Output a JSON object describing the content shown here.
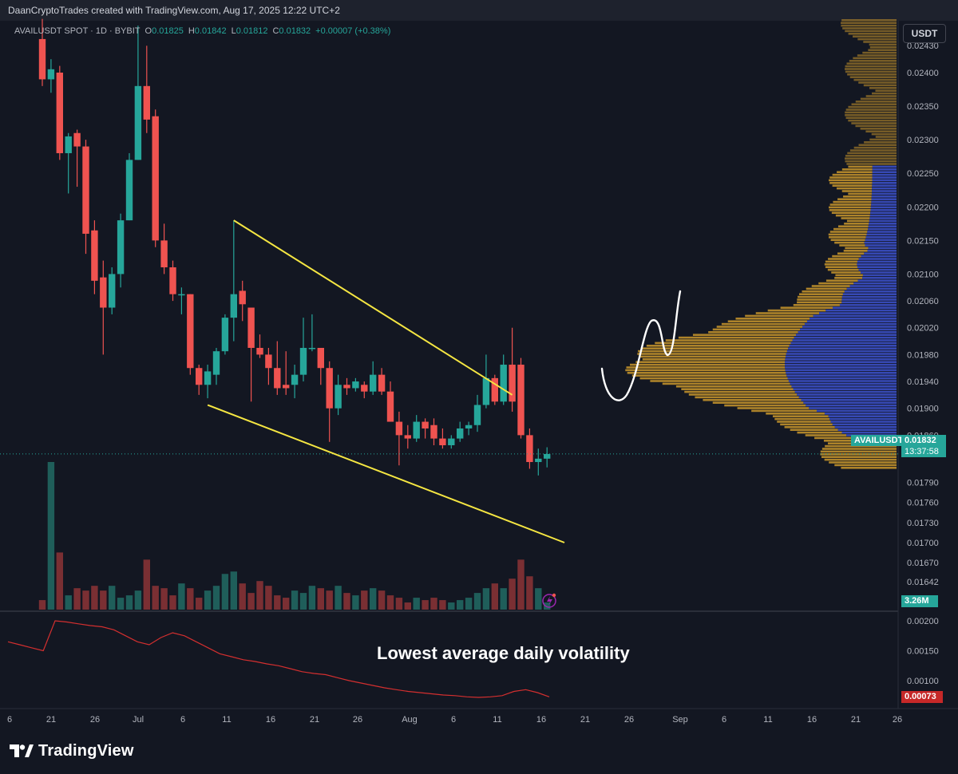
{
  "header": {
    "title": "DaanCryptoTrades created with TradingView.com, Aug 17, 2025 12:22 UTC+2"
  },
  "legend": {
    "symbol": "AVAILUSDT SPOT · 1D · BYBIT",
    "o_label": "O",
    "o_value": "0.01825",
    "h_label": "H",
    "h_value": "0.01842",
    "l_label": "L",
    "l_value": "0.01812",
    "c_label": "C",
    "c_value": "0.01832",
    "change": "+0.00007 (+0.38%)"
  },
  "currency_button": "USDT",
  "price_tag": {
    "symbol": "AVAILUSDT",
    "price": "0.01832",
    "countdown": "13:37:58"
  },
  "volume_tag": "3.26M",
  "volatility_tag": "0.00073",
  "annotation": "Lowest average daily volatility",
  "branding": {
    "name": "TradingView"
  },
  "colors": {
    "background": "#131722",
    "up": "#26a69a",
    "down": "#ef5350",
    "trendline": "#f5e642",
    "volume_profile": "#c9962b",
    "volume_profile_value_area": "#3b4fc4",
    "volatility_line": "#d32f2f"
  },
  "chart_data": [
    {
      "type": "candlestick",
      "title": "AVAILUSDT SPOT · 1D · BYBIT",
      "x_tick_labels": [
        "6",
        "21",
        "26",
        "Jul",
        "6",
        "11",
        "16",
        "21",
        "26",
        "Aug",
        "6",
        "11",
        "16",
        "21",
        "26",
        "Sep",
        "6",
        "11",
        "16",
        "21",
        "26"
      ],
      "y_tick_labels": [
        "0.02430",
        "0.02400",
        "0.02350",
        "0.02300",
        "0.02250",
        "0.02200",
        "0.02150",
        "0.02100",
        "0.02060",
        "0.02020",
        "0.01980",
        "0.01940",
        "0.01900",
        "0.01860",
        "0.01790",
        "0.01760",
        "0.01730",
        "0.01700",
        "0.01670",
        "0.01642"
      ],
      "ylim": [
        0.0164,
        0.0244
      ],
      "candles": [
        {
          "o": 0.0245,
          "h": 0.0248,
          "l": 0.0238,
          "c": 0.0239
        },
        {
          "o": 0.0239,
          "h": 0.0242,
          "l": 0.0237,
          "c": 0.02405
        },
        {
          "o": 0.024,
          "h": 0.0241,
          "l": 0.0227,
          "c": 0.0228
        },
        {
          "o": 0.0228,
          "h": 0.0231,
          "l": 0.0222,
          "c": 0.02305
        },
        {
          "o": 0.0231,
          "h": 0.02315,
          "l": 0.0223,
          "c": 0.0229
        },
        {
          "o": 0.0229,
          "h": 0.023,
          "l": 0.0213,
          "c": 0.0216
        },
        {
          "o": 0.02165,
          "h": 0.0218,
          "l": 0.0207,
          "c": 0.0209
        },
        {
          "o": 0.02095,
          "h": 0.0212,
          "l": 0.0198,
          "c": 0.0205
        },
        {
          "o": 0.0205,
          "h": 0.0211,
          "l": 0.0204,
          "c": 0.021
        },
        {
          "o": 0.021,
          "h": 0.0219,
          "l": 0.0208,
          "c": 0.0218
        },
        {
          "o": 0.0218,
          "h": 0.0228,
          "l": 0.0218,
          "c": 0.0227
        },
        {
          "o": 0.0227,
          "h": 0.0247,
          "l": 0.0227,
          "c": 0.0238
        },
        {
          "o": 0.0238,
          "h": 0.0244,
          "l": 0.0231,
          "c": 0.0233
        },
        {
          "o": 0.02335,
          "h": 0.02345,
          "l": 0.0214,
          "c": 0.0215
        },
        {
          "o": 0.0215,
          "h": 0.02175,
          "l": 0.021,
          "c": 0.0211
        },
        {
          "o": 0.0211,
          "h": 0.0212,
          "l": 0.0206,
          "c": 0.0207
        },
        {
          "o": 0.0207,
          "h": 0.0208,
          "l": 0.0204,
          "c": 0.0207
        },
        {
          "o": 0.0207,
          "h": 0.0207,
          "l": 0.0195,
          "c": 0.0196
        },
        {
          "o": 0.0196,
          "h": 0.01965,
          "l": 0.0192,
          "c": 0.01935
        },
        {
          "o": 0.01935,
          "h": 0.01965,
          "l": 0.01915,
          "c": 0.01955
        },
        {
          "o": 0.0195,
          "h": 0.0199,
          "l": 0.01935,
          "c": 0.01985
        },
        {
          "o": 0.01985,
          "h": 0.0204,
          "l": 0.0198,
          "c": 0.02035
        },
        {
          "o": 0.02035,
          "h": 0.0218,
          "l": 0.02,
          "c": 0.0207
        },
        {
          "o": 0.02075,
          "h": 0.0209,
          "l": 0.0203,
          "c": 0.02055
        },
        {
          "o": 0.0205,
          "h": 0.0205,
          "l": 0.0191,
          "c": 0.0199
        },
        {
          "o": 0.0199,
          "h": 0.0201,
          "l": 0.01975,
          "c": 0.0198
        },
        {
          "o": 0.0198,
          "h": 0.0199,
          "l": 0.01935,
          "c": 0.0196
        },
        {
          "o": 0.0196,
          "h": 0.02,
          "l": 0.0192,
          "c": 0.0193
        },
        {
          "o": 0.01935,
          "h": 0.01985,
          "l": 0.0192,
          "c": 0.0193
        },
        {
          "o": 0.01935,
          "h": 0.01965,
          "l": 0.01915,
          "c": 0.0195
        },
        {
          "o": 0.0195,
          "h": 0.02035,
          "l": 0.0194,
          "c": 0.0199
        },
        {
          "o": 0.0199,
          "h": 0.0204,
          "l": 0.01985,
          "c": 0.0199
        },
        {
          "o": 0.0199,
          "h": 0.0199,
          "l": 0.01935,
          "c": 0.0196
        },
        {
          "o": 0.0196,
          "h": 0.0197,
          "l": 0.0185,
          "c": 0.019
        },
        {
          "o": 0.019,
          "h": 0.0195,
          "l": 0.0189,
          "c": 0.01935
        },
        {
          "o": 0.01935,
          "h": 0.01945,
          "l": 0.0192,
          "c": 0.0193
        },
        {
          "o": 0.0193,
          "h": 0.01945,
          "l": 0.01925,
          "c": 0.0194
        },
        {
          "o": 0.01935,
          "h": 0.0194,
          "l": 0.01915,
          "c": 0.01925
        },
        {
          "o": 0.01925,
          "h": 0.0197,
          "l": 0.0192,
          "c": 0.0195
        },
        {
          "o": 0.0195,
          "h": 0.0196,
          "l": 0.0192,
          "c": 0.01925
        },
        {
          "o": 0.01925,
          "h": 0.0194,
          "l": 0.0188,
          "c": 0.0188
        },
        {
          "o": 0.0188,
          "h": 0.01895,
          "l": 0.01815,
          "c": 0.0186
        },
        {
          "o": 0.0186,
          "h": 0.01875,
          "l": 0.0184,
          "c": 0.01855
        },
        {
          "o": 0.01855,
          "h": 0.0189,
          "l": 0.0185,
          "c": 0.0188
        },
        {
          "o": 0.0188,
          "h": 0.01885,
          "l": 0.01855,
          "c": 0.0187
        },
        {
          "o": 0.01875,
          "h": 0.01885,
          "l": 0.01845,
          "c": 0.01855
        },
        {
          "o": 0.01855,
          "h": 0.0187,
          "l": 0.0184,
          "c": 0.01845
        },
        {
          "o": 0.01845,
          "h": 0.0186,
          "l": 0.0184,
          "c": 0.01855
        },
        {
          "o": 0.01855,
          "h": 0.0188,
          "l": 0.0185,
          "c": 0.0187
        },
        {
          "o": 0.0187,
          "h": 0.0188,
          "l": 0.0186,
          "c": 0.01875
        },
        {
          "o": 0.01875,
          "h": 0.0192,
          "l": 0.01865,
          "c": 0.01905
        },
        {
          "o": 0.01905,
          "h": 0.0198,
          "l": 0.019,
          "c": 0.01945
        },
        {
          "o": 0.01945,
          "h": 0.0195,
          "l": 0.01905,
          "c": 0.0191
        },
        {
          "o": 0.0191,
          "h": 0.0198,
          "l": 0.01905,
          "c": 0.01965
        },
        {
          "o": 0.01965,
          "h": 0.0202,
          "l": 0.01895,
          "c": 0.0191
        },
        {
          "o": 0.01965,
          "h": 0.01975,
          "l": 0.01855,
          "c": 0.0186
        },
        {
          "o": 0.0186,
          "h": 0.0187,
          "l": 0.0181,
          "c": 0.0182
        },
        {
          "o": 0.0182,
          "h": 0.0184,
          "l": 0.018,
          "c": 0.01825
        },
        {
          "o": 0.01825,
          "h": 0.01842,
          "l": 0.01812,
          "c": 0.01832
        }
      ],
      "volume": [
        0.4,
        6.2,
        2.4,
        0.6,
        0.9,
        0.8,
        1.0,
        0.8,
        1.0,
        0.5,
        0.6,
        0.8,
        2.1,
        1.0,
        0.9,
        0.6,
        1.1,
        0.9,
        0.5,
        0.8,
        1.0,
        1.5,
        1.6,
        1.1,
        0.7,
        1.2,
        1.0,
        0.6,
        0.5,
        0.8,
        0.7,
        1.0,
        0.9,
        0.8,
        1.0,
        0.7,
        0.6,
        0.8,
        0.9,
        0.8,
        0.6,
        0.5,
        0.3,
        0.5,
        0.4,
        0.5,
        0.4,
        0.3,
        0.4,
        0.5,
        0.7,
        0.9,
        1.1,
        0.9,
        1.3,
        2.1,
        1.4,
        0.9,
        0.3
      ],
      "trendlines": [
        {
          "name": "upper",
          "points": [
            [
              22,
              0.0218
            ],
            [
              47,
              0.0202
            ],
            [
              54,
              0.0192
            ]
          ]
        },
        {
          "name": "lower",
          "points": [
            [
              19,
              0.01905
            ],
            [
              40,
              0.018
            ],
            [
              60,
              0.017
            ]
          ]
        }
      ]
    },
    {
      "type": "line",
      "title": "",
      "y_tick_labels": [
        "0.00200",
        "0.00150",
        "0.00100"
      ],
      "ylim": [
        0.00045,
        0.00215
      ],
      "values": [
        0.00165,
        0.0016,
        0.00155,
        0.0015,
        0.002,
        0.00198,
        0.00195,
        0.00192,
        0.0019,
        0.00185,
        0.00175,
        0.00165,
        0.0016,
        0.00172,
        0.0018,
        0.00175,
        0.00165,
        0.00155,
        0.00145,
        0.0014,
        0.00135,
        0.00132,
        0.00128,
        0.00125,
        0.0012,
        0.00115,
        0.00112,
        0.0011,
        0.00105,
        0.001,
        0.00096,
        0.00092,
        0.00088,
        0.00085,
        0.00082,
        0.0008,
        0.00078,
        0.00076,
        0.00075,
        0.00073,
        0.00072,
        0.00073,
        0.00075,
        0.00082,
        0.00085,
        0.0008,
        0.00073
      ]
    }
  ]
}
